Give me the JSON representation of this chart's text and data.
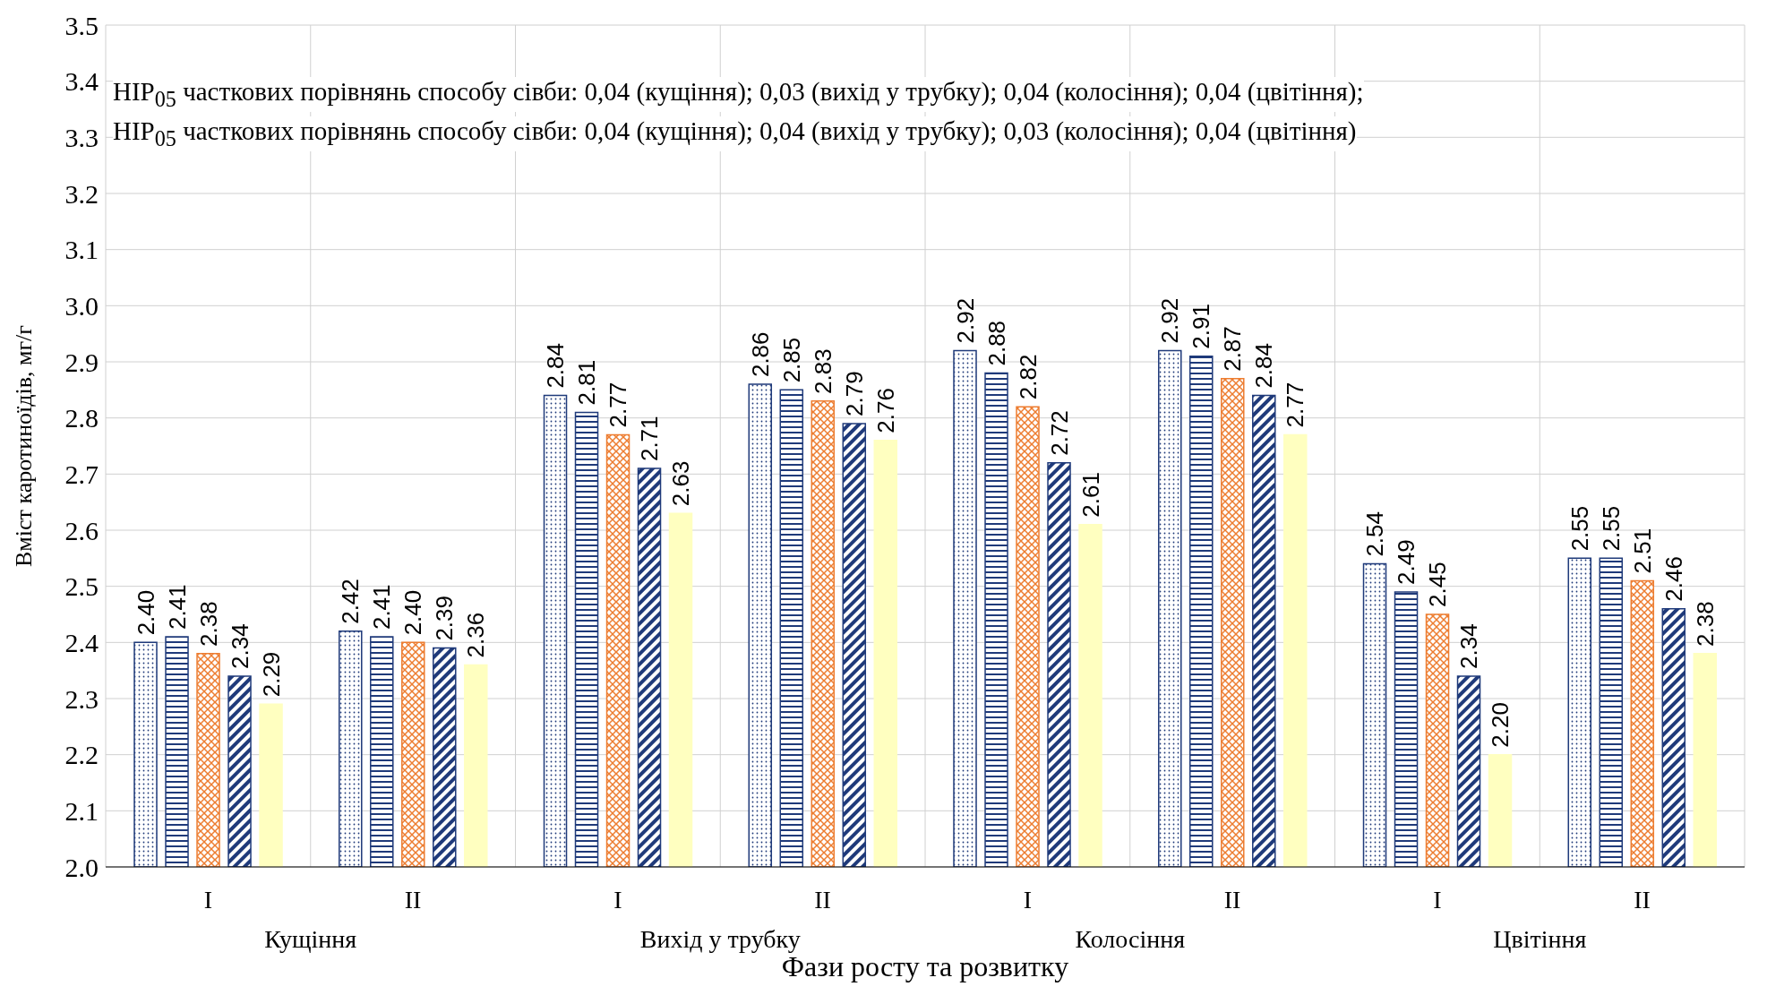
{
  "chart_data": {
    "type": "bar",
    "xlabel": "Фази росту та розвитку",
    "ylabel": "Вміст каротиноїдів, мг/г",
    "categories": [
      "I",
      "II",
      "I",
      "II",
      "I",
      "II",
      "I",
      "II"
    ],
    "series": [
      {
        "color": "#1f3a7a",
        "values": [
          2.4,
          2.42,
          2.84,
          2.86,
          2.92,
          2.92,
          2.54,
          2.55
        ],
        "value_labels": [
          "2.40",
          "2.42",
          "2.84",
          "2.86",
          "2.92",
          "2.92",
          "2.54",
          "2.55"
        ]
      },
      {
        "color": "#1f3a7a",
        "values": [
          2.41,
          2.41,
          2.81,
          2.85,
          2.88,
          2.91,
          2.49,
          2.55
        ],
        "value_labels": [
          "2.41",
          "2.41",
          "2.81",
          "2.85",
          "2.88",
          "2.91",
          "2.49",
          "2.55"
        ]
      },
      {
        "color": "#ed7d31",
        "values": [
          2.38,
          2.4,
          2.77,
          2.83,
          2.82,
          2.87,
          2.45,
          2.51
        ],
        "value_labels": [
          "2.38",
          "2.40",
          "2.77",
          "2.83",
          "2.82",
          "2.87",
          "2.45",
          "2.51"
        ]
      },
      {
        "color": "#1f3a7a",
        "values": [
          2.34,
          2.39,
          2.71,
          2.79,
          2.72,
          2.84,
          2.34,
          2.46
        ],
        "value_labels": [
          "2.34",
          "2.39",
          "2.71",
          "2.79",
          "2.72",
          "2.84",
          "2.34",
          "2.46"
        ]
      },
      {
        "color": "#ffffc0",
        "values": [
          2.29,
          2.36,
          2.63,
          2.76,
          2.61,
          2.77,
          2.2,
          2.38
        ],
        "value_labels": [
          "2.29",
          "2.36",
          "2.63",
          "2.76",
          "2.61",
          "2.77",
          "2.20",
          "2.38"
        ]
      }
    ],
    "ylim": [
      2.0,
      3.5
    ],
    "yticks": [
      {
        "value": 2.0,
        "label": "2.0"
      },
      {
        "value": 2.1,
        "label": "2.1"
      },
      {
        "value": 2.2,
        "label": "2.2"
      },
      {
        "value": 2.3,
        "label": "2.3"
      },
      {
        "value": 2.4,
        "label": "2.4"
      },
      {
        "value": 2.5,
        "label": "2.5"
      },
      {
        "value": 2.6,
        "label": "2.6"
      },
      {
        "value": 2.7,
        "label": "2.7"
      },
      {
        "value": 2.8,
        "label": "2.8"
      },
      {
        "value": 2.9,
        "label": "2.9"
      },
      {
        "value": 3.0,
        "label": "3.0"
      },
      {
        "value": 3.1,
        "label": "3.1"
      },
      {
        "value": 3.2,
        "label": "3.2"
      },
      {
        "value": 3.3,
        "label": "3.3"
      },
      {
        "value": 3.4,
        "label": "3.4"
      },
      {
        "value": 3.5,
        "label": "3.5"
      }
    ],
    "grid": true,
    "annotations": [
      "НІР$_{05}$ часткових порівнянь способу сівби: 0,04 (кущіння); 0,03 (вихід у трубку); 0,04 (колосіння); 0,04 (цвітіння);",
      "НІР$_{05}$ часткових порівнянь способу сівби: 0,04 (кущіння); 0,04 (вихід у трубку); 0,03 (колосіння); 0,04 (цвітіння)",
      "Кущіння",
      "Вихід у трубку",
      "Колосіння",
      "Цвітіння"
    ]
  }
}
